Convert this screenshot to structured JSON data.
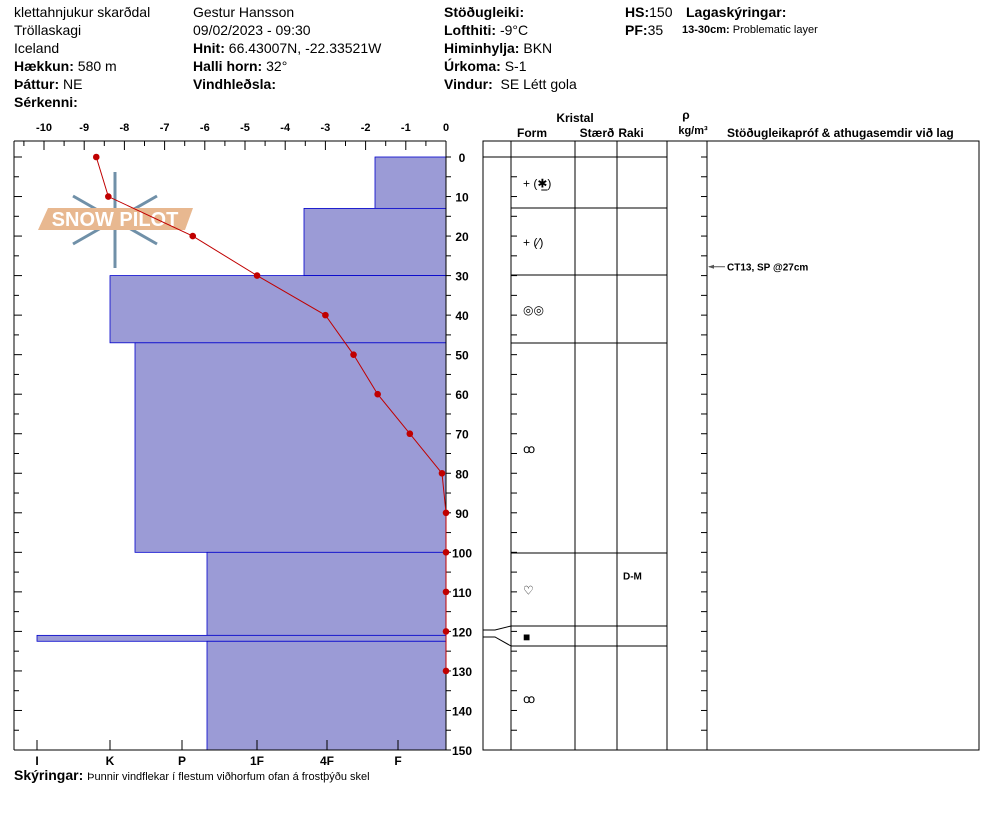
{
  "header": {
    "location": "klettahnjukur skarðdal",
    "range": "Tröllaskagi",
    "country": "Iceland",
    "elevation_label": "Hækkun:",
    "elevation": "580 m",
    "aspect_label": "Þáttur:",
    "aspect": "NE",
    "features_label": "Sérkenni:",
    "observer": "Gestur Hansson",
    "datetime": "09/02/2023 - 09:30",
    "coords_label": "Hnit:",
    "coords": "66.43007N, -22.33521W",
    "slope_label": "Halli horn:",
    "slope": "32°",
    "wind_loading_label": "Vindhleðsla:",
    "stability_label": "Stöðugleiki:",
    "air_temp_label": "Lofthiti:",
    "air_temp": "-9°C",
    "sky_label": "Himinhylja:",
    "sky": "BKN",
    "precip_label": "Úrkoma:",
    "precip": "S-1",
    "wind_label": "Vindur:",
    "wind": "SE Létt gola",
    "hs_label": "HS:",
    "hs": "150",
    "pf_label": "PF:",
    "pf": "35",
    "layer_notes_label": "Lagaskýringar:",
    "layer_note_range": "13-30cm:",
    "layer_note": "Problematic layer"
  },
  "footer": {
    "notes_label": "Skýringar:",
    "notes": "Þunnir vindflekar í flestum viðhorfum ofan á frostþýðu skel"
  },
  "logo": {
    "text": "SNOW PILOT"
  },
  "table": {
    "crystal": "Kristal",
    "form": "Form",
    "size": "Stærð",
    "moisture": "Raki",
    "rho": "ρ",
    "density_unit": "kg/m³",
    "comments": "Stöðugleikapróf & athugasemdir við lag",
    "test_result": "CT13, SP @27cm",
    "test_depth_cm": 27
  },
  "colors": {
    "hardness_fill": "#9b9bd6",
    "hardness_edge": "#0000cc",
    "temp_line": "#c00000"
  },
  "chart_data": {
    "type": "line",
    "temperature": {
      "xlim": [
        -10,
        0
      ],
      "ticks": [
        -10,
        -9,
        -8,
        -7,
        -6,
        -5,
        -4,
        -3,
        -2,
        -1,
        0
      ],
      "depth_cm": [
        0,
        10,
        20,
        30,
        40,
        50,
        60,
        70,
        80,
        90,
        100,
        110,
        120,
        130
      ],
      "temp_c": [
        -8.7,
        -8.4,
        -6.3,
        -4.7,
        -3.0,
        -2.3,
        -1.7,
        -0.9,
        -0.1,
        0,
        0,
        0,
        0,
        0
      ]
    },
    "depth": {
      "ylim": [
        0,
        150
      ],
      "ticks": [
        0,
        10,
        20,
        30,
        40,
        50,
        60,
        70,
        80,
        90,
        100,
        110,
        120,
        130,
        140,
        150
      ]
    },
    "hardness_ticks": [
      "I",
      "K",
      "P",
      "1F",
      "4F",
      "F"
    ],
    "layers": [
      {
        "top": 0,
        "bottom": 13,
        "hardness": "F+",
        "form": "+ (✱̲)",
        "size": "",
        "moisture": ""
      },
      {
        "top": 13,
        "bottom": 30,
        "hardness": "4F+",
        "form": "+ (⁄)",
        "size": "",
        "moisture": ""
      },
      {
        "top": 30,
        "bottom": 47,
        "hardness": "K",
        "form": "◎◎",
        "size": "",
        "moisture": ""
      },
      {
        "top": 47,
        "bottom": 100,
        "hardness": "K-",
        "form": "ꝏ",
        "size": "",
        "moisture": ""
      },
      {
        "top": 100,
        "bottom": 121,
        "hardness": "P-",
        "form": "♡",
        "size": "",
        "moisture": "D-M"
      },
      {
        "top": 121,
        "bottom": 122.5,
        "hardness": "I",
        "form": "■",
        "size": "",
        "moisture": ""
      },
      {
        "top": 122.5,
        "bottom": 150,
        "hardness": "P-",
        "form": "ꝏ",
        "size": "",
        "moisture": ""
      }
    ]
  }
}
